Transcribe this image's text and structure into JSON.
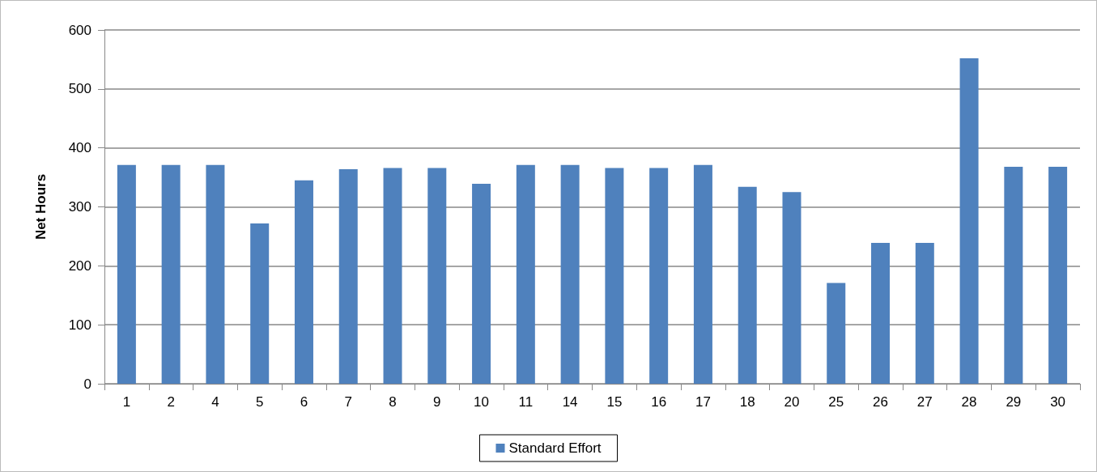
{
  "chart_data": {
    "type": "bar",
    "ylabel": "Net Hours",
    "categories": [
      "1",
      "2",
      "4",
      "5",
      "6",
      "7",
      "8",
      "9",
      "10",
      "11",
      "14",
      "15",
      "16",
      "17",
      "18",
      "20",
      "25",
      "26",
      "27",
      "28",
      "29",
      "30"
    ],
    "series": [
      {
        "name": "Standard Effort",
        "color": "#4f81bd",
        "values": [
          371,
          371,
          371,
          272,
          345,
          364,
          366,
          366,
          339,
          371,
          371,
          366,
          366,
          371,
          334,
          325,
          171,
          239,
          239,
          552,
          368,
          368
        ]
      }
    ],
    "ylim": [
      0,
      600
    ],
    "yticks": [
      0,
      100,
      200,
      300,
      400,
      500,
      600
    ],
    "grid": "y",
    "legend": "bottom"
  }
}
